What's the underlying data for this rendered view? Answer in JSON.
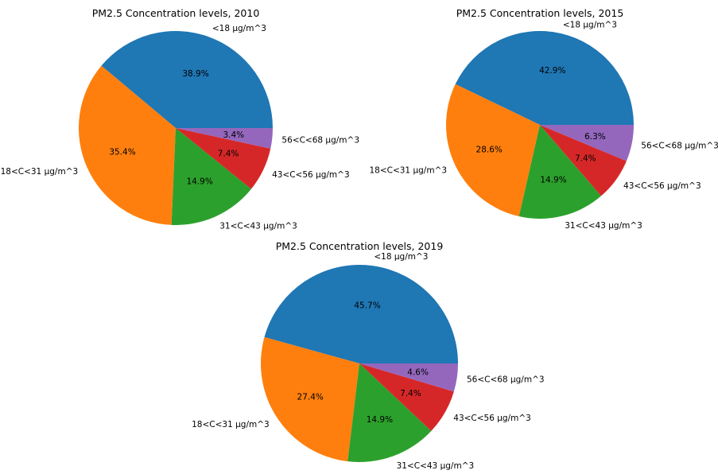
{
  "chart_data": [
    {
      "type": "pie",
      "title": "PM2.5 Concentration levels, 2010",
      "categories": [
        "<18 µg/m^3",
        "18<C<31 µg/m^3",
        "31<C<43 µg/m^3",
        "43<C<56 µg/m^3",
        "56<C<68 µg/m^3"
      ],
      "values": [
        38.9,
        35.4,
        14.9,
        7.4,
        3.4
      ],
      "pct_labels": [
        "38.9%",
        "35.4%",
        "14.9%",
        "7.4%",
        "3.4%"
      ]
    },
    {
      "type": "pie",
      "title": "PM2.5 Concentration levels, 2015",
      "categories": [
        "<18 µg/m^3",
        "18<C<31 µg/m^3",
        "31<C<43 µg/m^3",
        "43<C<56 µg/m^3",
        "56<C<68 µg/m^3"
      ],
      "values": [
        42.9,
        28.6,
        14.9,
        7.4,
        6.3
      ],
      "pct_labels": [
        "42.9%",
        "28.6%",
        "14.9%",
        "7.4%",
        "6.3%"
      ]
    },
    {
      "type": "pie",
      "title": "PM2.5 Concentration levels, 2019",
      "categories": [
        "<18 µg/m^3",
        "18<C<31 µg/m^3",
        "31<C<43 µg/m^3",
        "43<C<56 µg/m^3",
        "56<C<68 µg/m^3"
      ],
      "values": [
        45.7,
        27.4,
        14.9,
        7.4,
        4.6
      ],
      "pct_labels": [
        "45.7%",
        "27.4%",
        "14.9%",
        "7.4%",
        "4.6%"
      ]
    }
  ],
  "colors": [
    "#1f77b4",
    "#ff7f0e",
    "#2ca02c",
    "#d62728",
    "#9467bd"
  ]
}
